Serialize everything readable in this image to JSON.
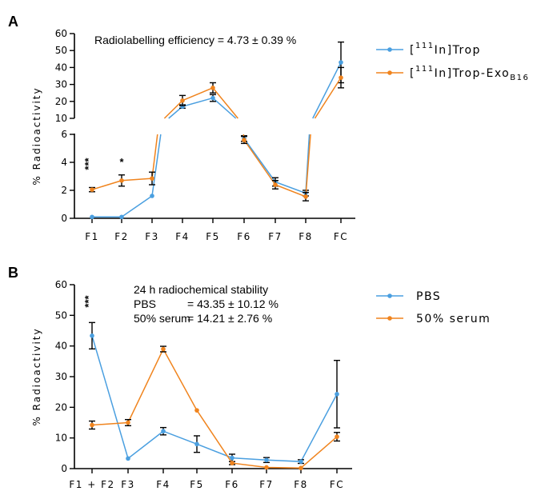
{
  "colors": {
    "series1": "#4a9fe0",
    "series2": "#f0841e"
  },
  "chart_data": [
    {
      "type": "line",
      "panel": "A",
      "annotation": "Radiolabelling efficiency = 4.73 ± 0.39 %",
      "ylabel": "% Radioactivity",
      "categories": [
        "F1",
        "F2",
        "F3",
        "F4",
        "F5",
        "F6",
        "F7",
        "F8",
        "FC"
      ],
      "y_axis": "broken",
      "ylim_lower": [
        0,
        6
      ],
      "ylim_upper": [
        10,
        60
      ],
      "yticks_lower": [
        0,
        2,
        4,
        6
      ],
      "yticks_upper": [
        10,
        20,
        30,
        40,
        50,
        60
      ],
      "legend": {
        "position": "right",
        "entries": [
          {
            "pre": "[",
            "sup": "111",
            "mid": "In]Trop",
            "sub": ""
          },
          {
            "pre": "[",
            "sup": "111",
            "mid": "In]Trop-Exo",
            "sub": "B16"
          }
        ]
      },
      "series": [
        {
          "values": [
            0.1,
            0.1,
            1.6,
            17,
            22,
            5.7,
            2.6,
            1.8,
            43
          ],
          "errors": [
            0.05,
            0.05,
            0.05,
            1,
            2,
            0.2,
            0.3,
            0.2,
            12
          ]
        },
        {
          "values": [
            2.05,
            2.7,
            2.85,
            20.5,
            28,
            5.6,
            2.4,
            1.55,
            34
          ],
          "errors": [
            0.15,
            0.4,
            0.45,
            3,
            3,
            0.25,
            0.3,
            0.3,
            6
          ]
        }
      ],
      "significance": [
        {
          "category": "F1",
          "label": "***"
        },
        {
          "category": "F2",
          "label": "*"
        }
      ]
    },
    {
      "type": "line",
      "panel": "B",
      "annotation_lines": [
        "24 h radiochemical stability",
        "PBS",
        "50% serum"
      ],
      "annotation_values": [
        "= 43.35 ± 10.12 %",
        "= 14.21 ± 2.76 %"
      ],
      "ylabel": "% Radioactivity",
      "categories": [
        "F1 + F2",
        "F3",
        "F4",
        "F5",
        "F6",
        "F7",
        "F8",
        "FC"
      ],
      "ylim": [
        0,
        60
      ],
      "yticks": [
        0,
        10,
        20,
        30,
        40,
        50,
        60
      ],
      "legend": {
        "position": "right",
        "entries": [
          "PBS",
          "50% serum"
        ]
      },
      "series": [
        {
          "name": "PBS",
          "values": [
            43.35,
            3.3,
            12.2,
            8,
            3.5,
            2.8,
            2.3,
            24.3
          ],
          "errors": [
            4.3,
            0.2,
            1.2,
            2.7,
            1.2,
            0.8,
            0.6,
            11
          ]
        },
        {
          "name": "50% serum",
          "values": [
            14.21,
            15,
            39,
            19,
            1.8,
            0.4,
            0.2,
            10.4
          ],
          "errors": [
            1.3,
            1.0,
            0.9,
            0.2,
            0.5,
            0.2,
            0.2,
            1.4
          ]
        }
      ],
      "significance": [
        {
          "category": "F1 + F2",
          "label": "***"
        }
      ]
    }
  ]
}
